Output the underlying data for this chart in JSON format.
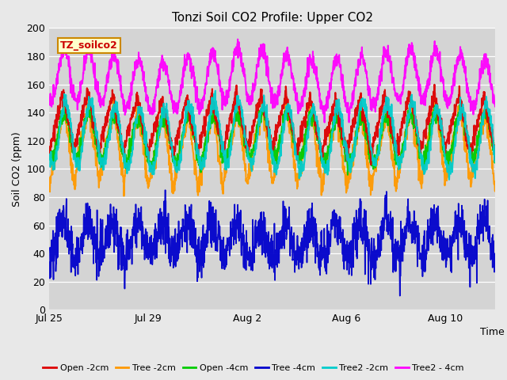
{
  "title": "Tonzi Soil CO2 Profile: Upper CO2",
  "xlabel": "Time",
  "ylabel": "Soil CO2 (ppm)",
  "ylim": [
    0,
    200
  ],
  "yticks": [
    0,
    20,
    40,
    60,
    80,
    100,
    120,
    140,
    160,
    180,
    200
  ],
  "fig_bg": "#e8e8e8",
  "plot_bg": "#d4d4d4",
  "legend_label": "TZ_soilco2",
  "legend_items": [
    {
      "label": "Open -2cm",
      "color": "#dd0000"
    },
    {
      "label": "Tree -2cm",
      "color": "#ff9900"
    },
    {
      "label": "Open -4cm",
      "color": "#00cc00"
    },
    {
      "label": "Tree -4cm",
      "color": "#0000cc"
    },
    {
      "label": "Tree2 -2cm",
      "color": "#00cccc"
    },
    {
      "label": "Tree2 - 4cm",
      "color": "#ff00ff"
    }
  ],
  "date_ticks": [
    0,
    4,
    8,
    12,
    16
  ],
  "date_tick_labels": [
    "Jul 25",
    "Jul 29",
    "Aug 2",
    "Aug 6",
    "Aug 10"
  ],
  "n_days": 18,
  "ppd": 96
}
